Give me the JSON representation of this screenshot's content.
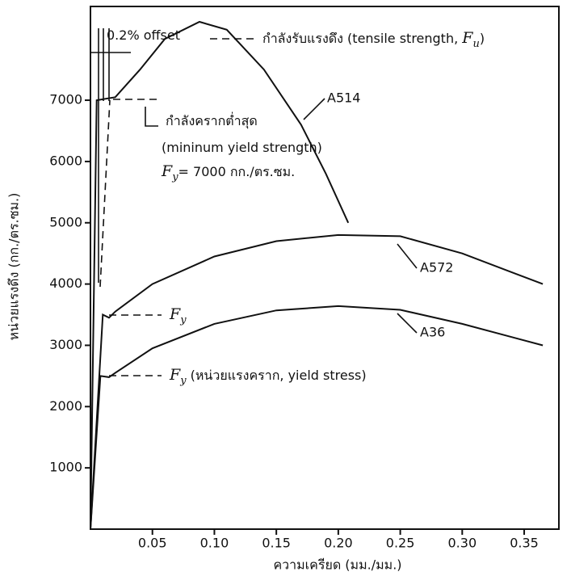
{
  "chart_data": {
    "type": "line",
    "x_label": "ความเครียด (มม./มม.)",
    "y_label": "หน่วยแรงดึง (กก./ตร.ซม.)",
    "xlim": [
      0,
      0.378
    ],
    "ylim": [
      0,
      8530
    ],
    "xticks": [
      0.05,
      {
        "value": 0.1,
        "label": "0.10"
      },
      0.15,
      {
        "value": 0.2,
        "label": "0.20"
      },
      0.25,
      {
        "value": 0.3,
        "label": "0.30"
      },
      0.35
    ],
    "yticks": [
      1000,
      2000,
      3000,
      4000,
      5000,
      6000,
      7000
    ],
    "series": [
      {
        "name": "A514",
        "color": "#111111",
        "x": [
          0,
          0.005,
          0.02,
          0.04,
          0.06,
          0.088,
          0.11,
          0.14,
          0.17,
          0.19,
          0.208
        ],
        "values": [
          0,
          7000,
          7050,
          7500,
          8000,
          8280,
          8150,
          7500,
          6600,
          5800,
          5000
        ]
      },
      {
        "name": "A572",
        "color": "#111111",
        "x": [
          0,
          0.01,
          0.015,
          0.02,
          0.05,
          0.1,
          0.15,
          0.2,
          0.25,
          0.3,
          0.365
        ],
        "values": [
          0,
          3500,
          3450,
          3550,
          4000,
          4450,
          4700,
          4800,
          4780,
          4500,
          4000
        ]
      },
      {
        "name": "A36",
        "color": "#111111",
        "x": [
          0,
          0.008,
          0.015,
          0.02,
          0.05,
          0.1,
          0.15,
          0.2,
          0.25,
          0.3,
          0.365
        ],
        "values": [
          0,
          2500,
          2480,
          2550,
          2950,
          3350,
          3570,
          3640,
          3580,
          3350,
          3000
        ]
      }
    ],
    "annotations": [
      {
        "parts": [
          "0.2% offset"
        ]
      },
      {
        "parts": [
          "กำลังรับแรงดึง (tensile strength, ",
          "F",
          "u",
          ")"
        ]
      },
      {
        "parts": [
          "กำลังครากต่ำสุด"
        ]
      },
      {
        "parts": [
          "(mininum yield strength)"
        ]
      },
      {
        "parts": [
          "F",
          "y",
          "= 7000 กก./ตร.ซม."
        ]
      },
      {
        "parts": [
          "F",
          "y"
        ]
      },
      {
        "parts": [
          "F",
          "y",
          " (หน่วยแรงคราก, yield stress)"
        ]
      }
    ]
  }
}
